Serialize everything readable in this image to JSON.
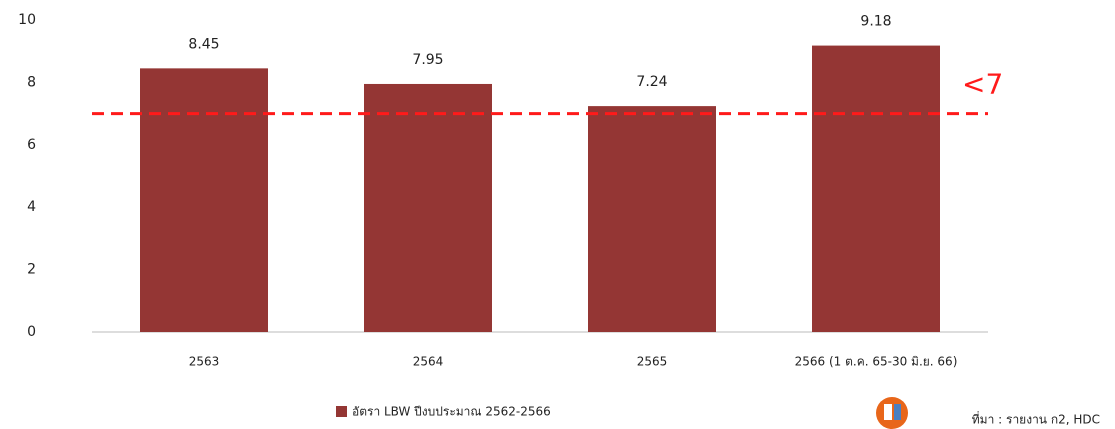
{
  "chart_data": {
    "type": "bar",
    "categories": [
      "2563",
      "2564",
      "2565",
      "2566 (1 ต.ค. 65-30 มิ.ย. 66)"
    ],
    "series": [
      {
        "name": "อัตรา LBW ปีงบประมาณ 2562-2566",
        "color": "#943634",
        "values": [
          8.45,
          7.95,
          7.24,
          9.18
        ]
      }
    ],
    "ylim": [
      0,
      10
    ],
    "yticks": [
      0,
      2,
      4,
      6,
      8,
      10
    ],
    "grid": false,
    "threshold": {
      "value": 7,
      "label": "<7",
      "color": "#ff1a1a"
    },
    "legend": "bottom",
    "source": "ที่มา : รายงาน ก2, HDC"
  }
}
